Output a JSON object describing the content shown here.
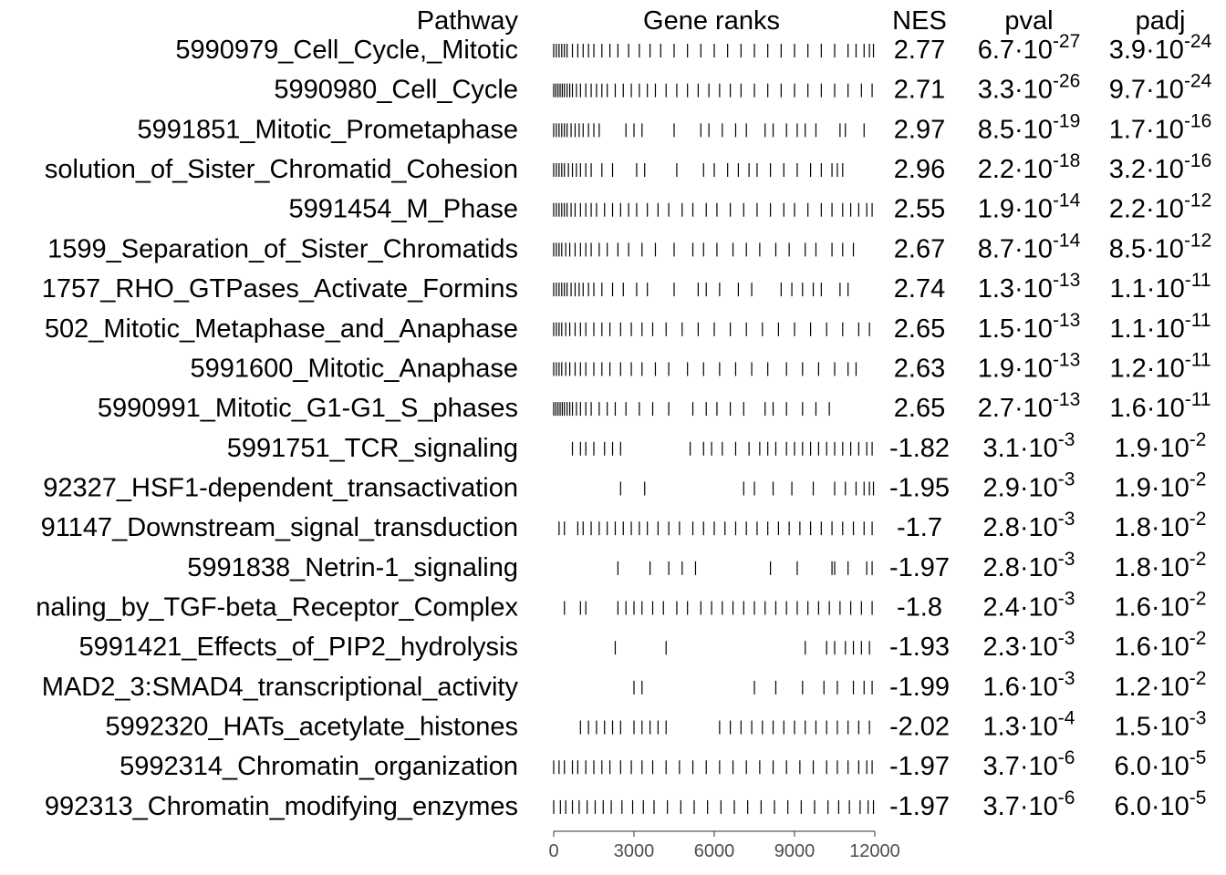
{
  "chart_data": {
    "type": "gsea_table",
    "headers": {
      "pathway": "Pathway",
      "ranks": "Gene ranks",
      "nes": "NES",
      "pval": "pval",
      "padj": "padj"
    },
    "xlim": [
      0,
      12000
    ],
    "xticks": [
      0,
      3000,
      6000,
      9000,
      12000
    ],
    "rows": [
      {
        "pathway": "5990979_Cell_Cycle,_Mitotic",
        "nes": 2.77,
        "pval": {
          "base": "6.7·10",
          "exp": "-27"
        },
        "padj": {
          "base": "3.9·10",
          "exp": "-24"
        },
        "ranks": [
          0,
          100,
          200,
          300,
          400,
          500,
          700,
          900,
          1100,
          1300,
          1500,
          1800,
          2100,
          2400,
          2800,
          3200,
          3600,
          4000,
          4500,
          5000,
          5500,
          6000,
          6500,
          7000,
          7500,
          8000,
          8500,
          9000,
          9500,
          10000,
          10500,
          11000,
          11300,
          11600,
          11800,
          11950
        ]
      },
      {
        "pathway": "5990980_Cell_Cycle",
        "nes": 2.71,
        "pval": {
          "base": "3.3·10",
          "exp": "-26"
        },
        "padj": {
          "base": "9.7·10",
          "exp": "-24"
        },
        "ranks": [
          0,
          80,
          160,
          240,
          320,
          400,
          500,
          600,
          700,
          850,
          1000,
          1200,
          1400,
          1600,
          1800,
          2000,
          2300,
          2600,
          2900,
          3200,
          3500,
          3800,
          4200,
          4600,
          5000,
          5400,
          5800,
          6200,
          6600,
          7000,
          7500,
          8000,
          8500,
          9000,
          9500,
          10000,
          10500,
          11000,
          11500,
          11900
        ]
      },
      {
        "pathway": "5991851_Mitotic_Prometaphase",
        "nes": 2.97,
        "pval": {
          "base": "8.5·10",
          "exp": "-19"
        },
        "padj": {
          "base": "1.7·10",
          "exp": "-16"
        },
        "ranks": [
          0,
          100,
          200,
          300,
          400,
          500,
          650,
          800,
          950,
          1100,
          1300,
          1500,
          1700,
          2700,
          3000,
          3300,
          4500,
          5500,
          5800,
          6300,
          6800,
          7200,
          7900,
          8200,
          8700,
          9100,
          9400,
          9800,
          10700,
          10900,
          11600
        ]
      },
      {
        "pathway": "solution_of_Sister_Chromatid_Cohesion",
        "nes": 2.96,
        "pval": {
          "base": "2.2·10",
          "exp": "-18"
        },
        "padj": {
          "base": "3.2·10",
          "exp": "-16"
        },
        "ranks": [
          0,
          100,
          200,
          300,
          400,
          550,
          700,
          850,
          1000,
          1200,
          1400,
          1800,
          2200,
          3100,
          3400,
          4600,
          5600,
          6000,
          6500,
          6900,
          7300,
          7600,
          8100,
          8600,
          9100,
          9600,
          10000,
          10400,
          10600,
          10800
        ]
      },
      {
        "pathway": "5991454_M_Phase",
        "nes": 2.55,
        "pval": {
          "base": "1.9·10",
          "exp": "-14"
        },
        "padj": {
          "base": "2.2·10",
          "exp": "-12"
        },
        "ranks": [
          0,
          100,
          200,
          300,
          400,
          500,
          650,
          800,
          1000,
          1200,
          1400,
          1600,
          1900,
          2200,
          2500,
          2800,
          3100,
          3500,
          3900,
          4300,
          4800,
          5200,
          5700,
          6100,
          6600,
          7100,
          7600,
          8100,
          8600,
          9000,
          9500,
          10000,
          10400,
          10800,
          11100,
          11400,
          11700,
          11900
        ]
      },
      {
        "pathway": "1599_Separation_of_Sister_Chromatids",
        "nes": 2.67,
        "pval": {
          "base": "8.7·10",
          "exp": "-14"
        },
        "padj": {
          "base": "8.5·10",
          "exp": "-12"
        },
        "ranks": [
          0,
          100,
          200,
          300,
          450,
          600,
          800,
          1000,
          1200,
          1400,
          1700,
          2000,
          2400,
          2800,
          3300,
          3800,
          4500,
          5200,
          5600,
          6100,
          6700,
          7200,
          7700,
          8300,
          8800,
          9400,
          9800,
          10400,
          10800,
          11200
        ]
      },
      {
        "pathway": "1757_RHO_GTPases_Activate_Formins",
        "nes": 2.74,
        "pval": {
          "base": "1.3·10",
          "exp": "-13"
        },
        "padj": {
          "base": "1.1·10",
          "exp": "-11"
        },
        "ranks": [
          0,
          100,
          200,
          300,
          400,
          500,
          650,
          800,
          950,
          1100,
          1300,
          1500,
          1800,
          2200,
          2600,
          3100,
          3500,
          4500,
          5400,
          5700,
          6200,
          6900,
          7400,
          8500,
          8900,
          9300,
          9700,
          10000,
          10700,
          11000
        ]
      },
      {
        "pathway": "502_Mitotic_Metaphase_and_Anaphase",
        "nes": 2.65,
        "pval": {
          "base": "1.5·10",
          "exp": "-13"
        },
        "padj": {
          "base": "1.1·10",
          "exp": "-11"
        },
        "ranks": [
          0,
          100,
          200,
          300,
          450,
          600,
          800,
          1000,
          1200,
          1500,
          1800,
          2100,
          2500,
          2900,
          3300,
          3700,
          4200,
          4800,
          5400,
          6000,
          6600,
          7200,
          7800,
          8400,
          9000,
          9600,
          10200,
          10800,
          11400,
          11800
        ]
      },
      {
        "pathway": "5991600_Mitotic_Anaphase",
        "nes": 2.63,
        "pval": {
          "base": "1.9·10",
          "exp": "-13"
        },
        "padj": {
          "base": "1.2·10",
          "exp": "-11"
        },
        "ranks": [
          0,
          100,
          200,
          300,
          450,
          600,
          800,
          1000,
          1200,
          1500,
          1800,
          2100,
          2500,
          2900,
          3300,
          3800,
          4300,
          5000,
          5600,
          6200,
          6800,
          7400,
          8000,
          8700,
          9300,
          9900,
          10500,
          11000,
          11300
        ]
      },
      {
        "pathway": "5990991_Mitotic_G1-G1_S_phases",
        "nes": 2.65,
        "pval": {
          "base": "2.7·10",
          "exp": "-13"
        },
        "padj": {
          "base": "1.6·10",
          "exp": "-11"
        },
        "ranks": [
          0,
          80,
          160,
          240,
          320,
          400,
          500,
          600,
          700,
          850,
          1000,
          1200,
          1400,
          1700,
          2000,
          2300,
          2700,
          3200,
          3700,
          4300,
          5200,
          5700,
          6100,
          6600,
          7100,
          7900,
          8200,
          8700,
          9300,
          9800,
          10300
        ]
      },
      {
        "pathway": "5991751_TCR_signaling",
        "nes": -1.82,
        "pval": {
          "base": "3.1·10",
          "exp": "-3"
        },
        "padj": {
          "base": "1.9·10",
          "exp": "-2"
        },
        "ranks": [
          700,
          1000,
          1200,
          1500,
          1900,
          2200,
          2500,
          5100,
          5600,
          5900,
          6300,
          6800,
          7300,
          7700,
          8000,
          8300,
          8700,
          9000,
          9300,
          9600,
          9900,
          10200,
          10500,
          10800,
          11100,
          11400,
          11700,
          11900
        ]
      },
      {
        "pathway": "92327_HSF1-dependent_transactivation",
        "nes": -1.95,
        "pval": {
          "base": "2.9·10",
          "exp": "-3"
        },
        "padj": {
          "base": "1.9·10",
          "exp": "-2"
        },
        "ranks": [
          2500,
          3400,
          7100,
          7500,
          8200,
          8900,
          9700,
          10500,
          10900,
          11300,
          11600,
          11800,
          11950
        ]
      },
      {
        "pathway": "91147_Downstream_signal_transduction",
        "nes": -1.7,
        "pval": {
          "base": "2.8·10",
          "exp": "-3"
        },
        "padj": {
          "base": "1.8·10",
          "exp": "-2"
        },
        "ranks": [
          200,
          400,
          900,
          1100,
          1400,
          1700,
          2000,
          2300,
          2600,
          2900,
          3200,
          3500,
          3900,
          4300,
          4700,
          5200,
          5600,
          6000,
          6400,
          6800,
          7200,
          7600,
          8000,
          8400,
          8800,
          9200,
          9600,
          10000,
          10400,
          10800,
          11200,
          11600,
          11900
        ]
      },
      {
        "pathway": "5991838_Netrin-1_signaling",
        "nes": -1.97,
        "pval": {
          "base": "2.8·10",
          "exp": "-3"
        },
        "padj": {
          "base": "1.8·10",
          "exp": "-2"
        },
        "ranks": [
          2400,
          3600,
          4300,
          4800,
          5300,
          8100,
          9100,
          10400,
          10500,
          11000,
          11700,
          11900
        ]
      },
      {
        "pathway": "naling_by_TGF-beta_Receptor_Complex",
        "nes": -1.8,
        "pval": {
          "base": "2.4·10",
          "exp": "-3"
        },
        "padj": {
          "base": "1.6·10",
          "exp": "-2"
        },
        "ranks": [
          400,
          1000,
          1200,
          2400,
          2700,
          3000,
          3300,
          3700,
          4100,
          4600,
          5000,
          5500,
          5900,
          6300,
          6700,
          7100,
          7500,
          7900,
          8300,
          8700,
          9100,
          9500,
          9900,
          10300,
          10700,
          11100,
          11500,
          11900
        ]
      },
      {
        "pathway": "5991421_Effects_of_PIP2_hydrolysis",
        "nes": -1.93,
        "pval": {
          "base": "2.3·10",
          "exp": "-3"
        },
        "padj": {
          "base": "1.6·10",
          "exp": "-2"
        },
        "ranks": [
          2300,
          4200,
          9400,
          10200,
          10500,
          10900,
          11200,
          11500,
          11800
        ]
      },
      {
        "pathway": "MAD2_3:SMAD4_transcriptional_activity",
        "nes": -1.99,
        "pval": {
          "base": "1.6·10",
          "exp": "-3"
        },
        "padj": {
          "base": "1.2·10",
          "exp": "-2"
        },
        "ranks": [
          3000,
          3300,
          7500,
          8300,
          9300,
          10100,
          10600,
          11200,
          11600,
          11900
        ]
      },
      {
        "pathway": "5992320_HATs_acetylate_histones",
        "nes": -2.02,
        "pval": {
          "base": "1.3·10",
          "exp": "-4"
        },
        "padj": {
          "base": "1.5·10",
          "exp": "-3"
        },
        "ranks": [
          1000,
          1300,
          1600,
          1900,
          2200,
          2500,
          3000,
          3300,
          3600,
          3900,
          4200,
          6200,
          6600,
          7000,
          7400,
          7800,
          8200,
          8600,
          9000,
          9400,
          9800,
          10200,
          10600,
          11000,
          11400,
          11800
        ]
      },
      {
        "pathway": "5992314_Chromatin_organization",
        "nes": -1.97,
        "pval": {
          "base": "3.7·10",
          "exp": "-6"
        },
        "padj": {
          "base": "6.0·10",
          "exp": "-5"
        },
        "ranks": [
          0,
          200,
          400,
          700,
          900,
          1200,
          1500,
          1800,
          2100,
          2500,
          2900,
          3300,
          3700,
          4200,
          4700,
          5200,
          5700,
          6200,
          6700,
          7200,
          7700,
          8200,
          8700,
          9200,
          9700,
          10200,
          10600,
          11000,
          11400,
          11700,
          11900
        ]
      },
      {
        "pathway": "992313_Chromatin_modifying_enzymes",
        "nes": -1.97,
        "pval": {
          "base": "3.7·10",
          "exp": "-6"
        },
        "padj": {
          "base": "6.0·10",
          "exp": "-5"
        },
        "ranks": [
          0,
          250,
          450,
          700,
          950,
          1250,
          1550,
          1850,
          2150,
          2550,
          2950,
          3350,
          3750,
          4250,
          4750,
          5250,
          5750,
          6250,
          6750,
          7250,
          7750,
          8250,
          8750,
          9250,
          9750,
          10250,
          10650,
          11050,
          11450,
          11750,
          11950
        ]
      }
    ]
  }
}
